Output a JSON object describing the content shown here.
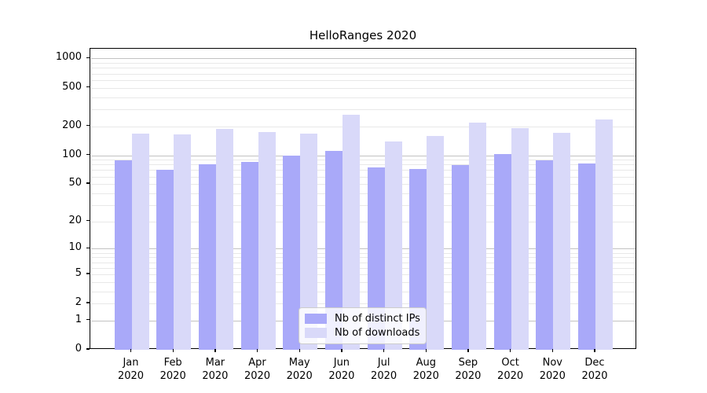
{
  "chart_data": {
    "type": "bar",
    "title": "HelloRanges 2020",
    "categories": [
      "Jan",
      "Feb",
      "Mar",
      "Apr",
      "May",
      "Jun",
      "Jul",
      "Aug",
      "Sep",
      "Oct",
      "Nov",
      "Dec"
    ],
    "x_year_label": "2020",
    "series": [
      {
        "name": "Nb of distinct IPs",
        "color": "#a9a9f9",
        "values": [
          89,
          71,
          81,
          85,
          99,
          110,
          75,
          72,
          79,
          103,
          88,
          82
        ]
      },
      {
        "name": "Nb of downloads",
        "color": "#d9d9f9",
        "values": [
          169,
          166,
          188,
          175,
          168,
          265,
          139,
          159,
          216,
          190,
          171,
          236
        ]
      }
    ],
    "yscale": "log1p (symlog-like: y proportional to log10(1+v), 0 at baseline)",
    "yticks": [
      0,
      1,
      2,
      5,
      10,
      20,
      50,
      100,
      200,
      500,
      1000
    ],
    "ylim": [
      0,
      1260
    ],
    "grid": "horizontal major (1,10,100,1000) + minor (2-9 per decade)",
    "legend_position": "inside plot, lower middle",
    "colors": {
      "major_grid": "#c2c2c2",
      "minor_grid": "#e8e8e8",
      "spine": "#000000"
    }
  }
}
